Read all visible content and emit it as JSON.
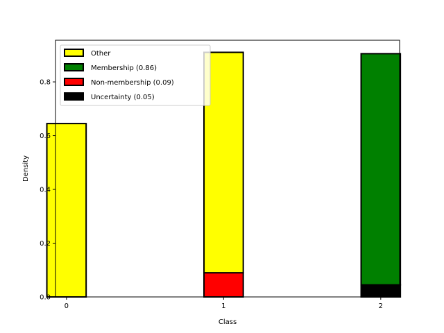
{
  "chart_data": {
    "type": "bar",
    "stacked": true,
    "xlabel": "Class",
    "ylabel": "Density",
    "x_ticks": [
      "0",
      "1",
      "2"
    ],
    "y_ticks": [
      "0.0",
      "0.2",
      "0.4",
      "0.6",
      "0.8"
    ],
    "xlim": [
      -0.07,
      2.12
    ],
    "ylim": [
      0,
      0.955
    ],
    "bar_width": 0.25,
    "legend_placement": "top-left",
    "grid": false,
    "bars": [
      {
        "x": 0,
        "segments": [
          {
            "series": "other",
            "value": 0.645
          }
        ]
      },
      {
        "x": 1,
        "segments": [
          {
            "series": "nonmembership",
            "value": 0.09
          },
          {
            "series": "other",
            "value": 0.82
          }
        ]
      },
      {
        "x": 2,
        "segments": [
          {
            "series": "uncertainty",
            "value": 0.045
          },
          {
            "series": "membership",
            "value": 0.86
          }
        ]
      }
    ],
    "series": [
      {
        "key": "other",
        "name": "Other",
        "color": "#ffff00"
      },
      {
        "key": "membership",
        "name": "Membership (0.86)",
        "color": "#008000"
      },
      {
        "key": "nonmembership",
        "name": "Non-membership (0.09)",
        "color": "#ff0000"
      },
      {
        "key": "uncertainty",
        "name": "Uncertainty (0.05)",
        "color": "#000000"
      }
    ],
    "edge_color": "#000000"
  }
}
